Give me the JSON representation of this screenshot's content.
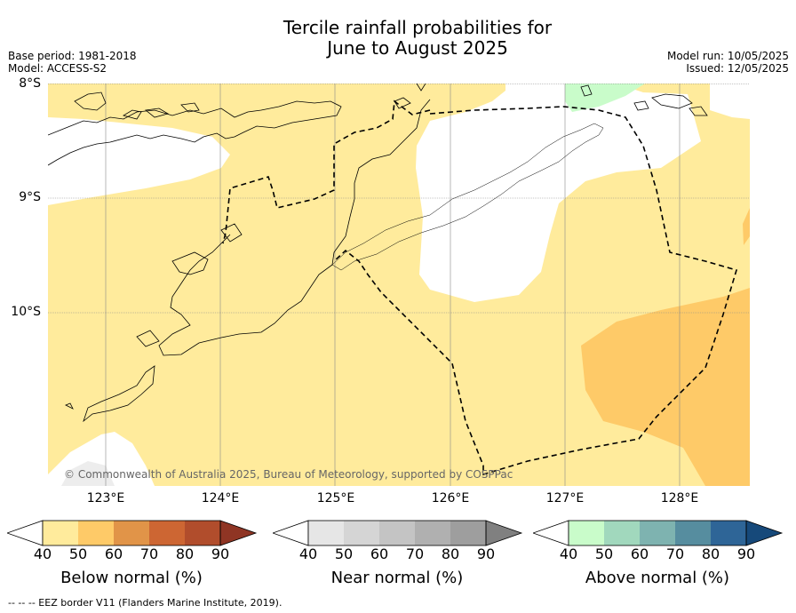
{
  "title": {
    "line1": "Tercile rainfall probabilities for",
    "line2": "June to August 2025"
  },
  "meta": {
    "base_period": "Base period: 1981-2018",
    "model": "Model: ACCESS-S2",
    "model_run": "Model run: 10/05/2025",
    "issued": "Issued: 12/05/2025"
  },
  "map": {
    "lat_labels": [
      "8°S",
      "9°S",
      "10°S"
    ],
    "lon_labels": [
      "123°E",
      "124°E",
      "125°E",
      "126°E",
      "127°E",
      "128°E"
    ],
    "copyright": "© Commonwealth of Australia 2025, Bureau of Meteorology, supported by COSPPac",
    "colors": {
      "below_40_50": "#ffeb9c",
      "below_50_60": "#feca68",
      "above_40_50": "#c9fcca",
      "normal": "#ffffff"
    }
  },
  "colorbars": [
    {
      "title": "Below normal (%)",
      "ticks": [
        "40",
        "50",
        "60",
        "70",
        "80",
        "90"
      ],
      "colors": [
        "#ffffff",
        "#ffeb9c",
        "#feca68",
        "#e19448",
        "#cd6633",
        "#b14d2c",
        "#8f3524"
      ]
    },
    {
      "title": "Near normal (%)",
      "ticks": [
        "40",
        "50",
        "60",
        "70",
        "80",
        "90"
      ],
      "colors": [
        "#ffffff",
        "#e6e6e6",
        "#d5d5d5",
        "#c4c4c4",
        "#b0b0b0",
        "#9e9e9e",
        "#808080"
      ]
    },
    {
      "title": "Above normal (%)",
      "ticks": [
        "40",
        "50",
        "60",
        "70",
        "80",
        "90"
      ],
      "colors": [
        "#ffffff",
        "#c9fcca",
        "#a1d8bd",
        "#7eb3b0",
        "#568d9f",
        "#2e6597",
        "#16497a"
      ]
    }
  ],
  "footnote": "--  --  -- EEZ border V11 (Flanders Marine Institute, 2019)."
}
